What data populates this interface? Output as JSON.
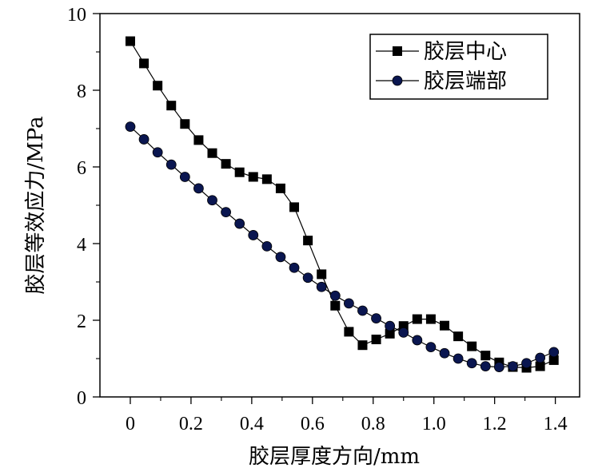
{
  "chart_data": {
    "type": "line",
    "title": "",
    "xlabel": "胶层厚度方向/mm",
    "ylabel": "胶层等效应力/MPa",
    "xlim": [
      -0.1,
      1.48
    ],
    "ylim": [
      0,
      10
    ],
    "xticks": [
      "0",
      "0.2",
      "0.4",
      "0.6",
      "0.8",
      "1.0",
      "1.2",
      "1.4"
    ],
    "xtick_values": [
      0,
      0.2,
      0.4,
      0.6,
      0.8,
      1.0,
      1.2,
      1.4
    ],
    "yticks": [
      "0",
      "2",
      "4",
      "6",
      "8",
      "10"
    ],
    "ytick_values": [
      0,
      2,
      4,
      6,
      8,
      10
    ],
    "grid": false,
    "legend_position": "top-right",
    "series": [
      {
        "name": "胶层中心",
        "marker": "square",
        "color": "#000000",
        "x": [
          0,
          0.045,
          0.09,
          0.135,
          0.18,
          0.225,
          0.27,
          0.315,
          0.36,
          0.405,
          0.45,
          0.495,
          0.54,
          0.585,
          0.63,
          0.675,
          0.72,
          0.765,
          0.81,
          0.855,
          0.9,
          0.945,
          0.99,
          1.035,
          1.08,
          1.125,
          1.17,
          1.215,
          1.26,
          1.305,
          1.35,
          1.395
        ],
        "values": [
          9.28,
          8.7,
          8.12,
          7.6,
          7.12,
          6.7,
          6.36,
          6.08,
          5.86,
          5.74,
          5.68,
          5.44,
          4.95,
          4.08,
          3.2,
          2.38,
          1.7,
          1.35,
          1.5,
          1.65,
          1.85,
          2.03,
          2.03,
          1.86,
          1.58,
          1.32,
          1.08,
          0.9,
          0.78,
          0.76,
          0.8,
          0.96
        ]
      },
      {
        "name": "胶层端部",
        "marker": "circle",
        "color": "#0a1650",
        "x": [
          0,
          0.045,
          0.09,
          0.135,
          0.18,
          0.225,
          0.27,
          0.315,
          0.36,
          0.405,
          0.45,
          0.495,
          0.54,
          0.585,
          0.63,
          0.675,
          0.72,
          0.765,
          0.81,
          0.855,
          0.9,
          0.945,
          0.99,
          1.035,
          1.08,
          1.125,
          1.17,
          1.215,
          1.26,
          1.305,
          1.35,
          1.395
        ],
        "values": [
          7.05,
          6.72,
          6.38,
          6.06,
          5.74,
          5.44,
          5.13,
          4.82,
          4.52,
          4.22,
          3.93,
          3.65,
          3.37,
          3.11,
          2.87,
          2.64,
          2.44,
          2.25,
          2.05,
          1.85,
          1.68,
          1.48,
          1.3,
          1.14,
          1.0,
          0.88,
          0.8,
          0.78,
          0.8,
          0.88,
          1.02,
          1.17
        ]
      }
    ]
  }
}
